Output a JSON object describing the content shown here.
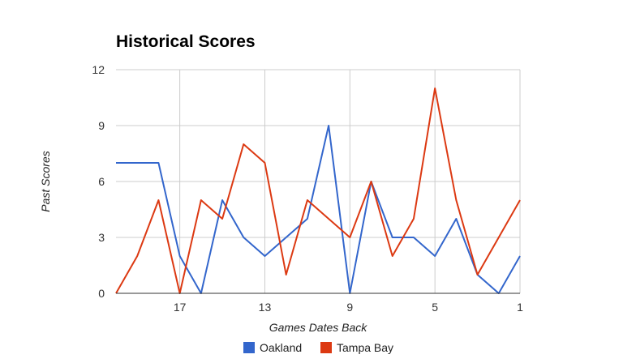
{
  "chart_data": {
    "type": "line",
    "title": "Historical Scores",
    "xlabel": "Games Dates Back",
    "ylabel": "Past Scores",
    "x": [
      20,
      19,
      18,
      17,
      16,
      15,
      14,
      13,
      12,
      11,
      10,
      9,
      8,
      7,
      6,
      5,
      4,
      3,
      2,
      1
    ],
    "x_tick_labels": [
      "17",
      "13",
      "9",
      "5",
      "1"
    ],
    "y_ticks": [
      "0",
      "3",
      "6",
      "9",
      "12"
    ],
    "ylim": [
      0,
      12
    ],
    "grid": true,
    "legend_position": "bottom",
    "series": [
      {
        "name": "Oakland",
        "color": "#3366cc",
        "values": [
          7,
          7,
          7,
          2,
          0,
          5,
          3,
          2,
          3,
          4,
          9,
          0,
          6,
          3,
          3,
          2,
          4,
          1,
          0,
          2
        ]
      },
      {
        "name": "Tampa Bay",
        "color": "#dc3912",
        "values": [
          0,
          2,
          5,
          0,
          5,
          4,
          8,
          7,
          1,
          5,
          4,
          3,
          6,
          2,
          4,
          11,
          5,
          1,
          3,
          5
        ]
      }
    ]
  }
}
